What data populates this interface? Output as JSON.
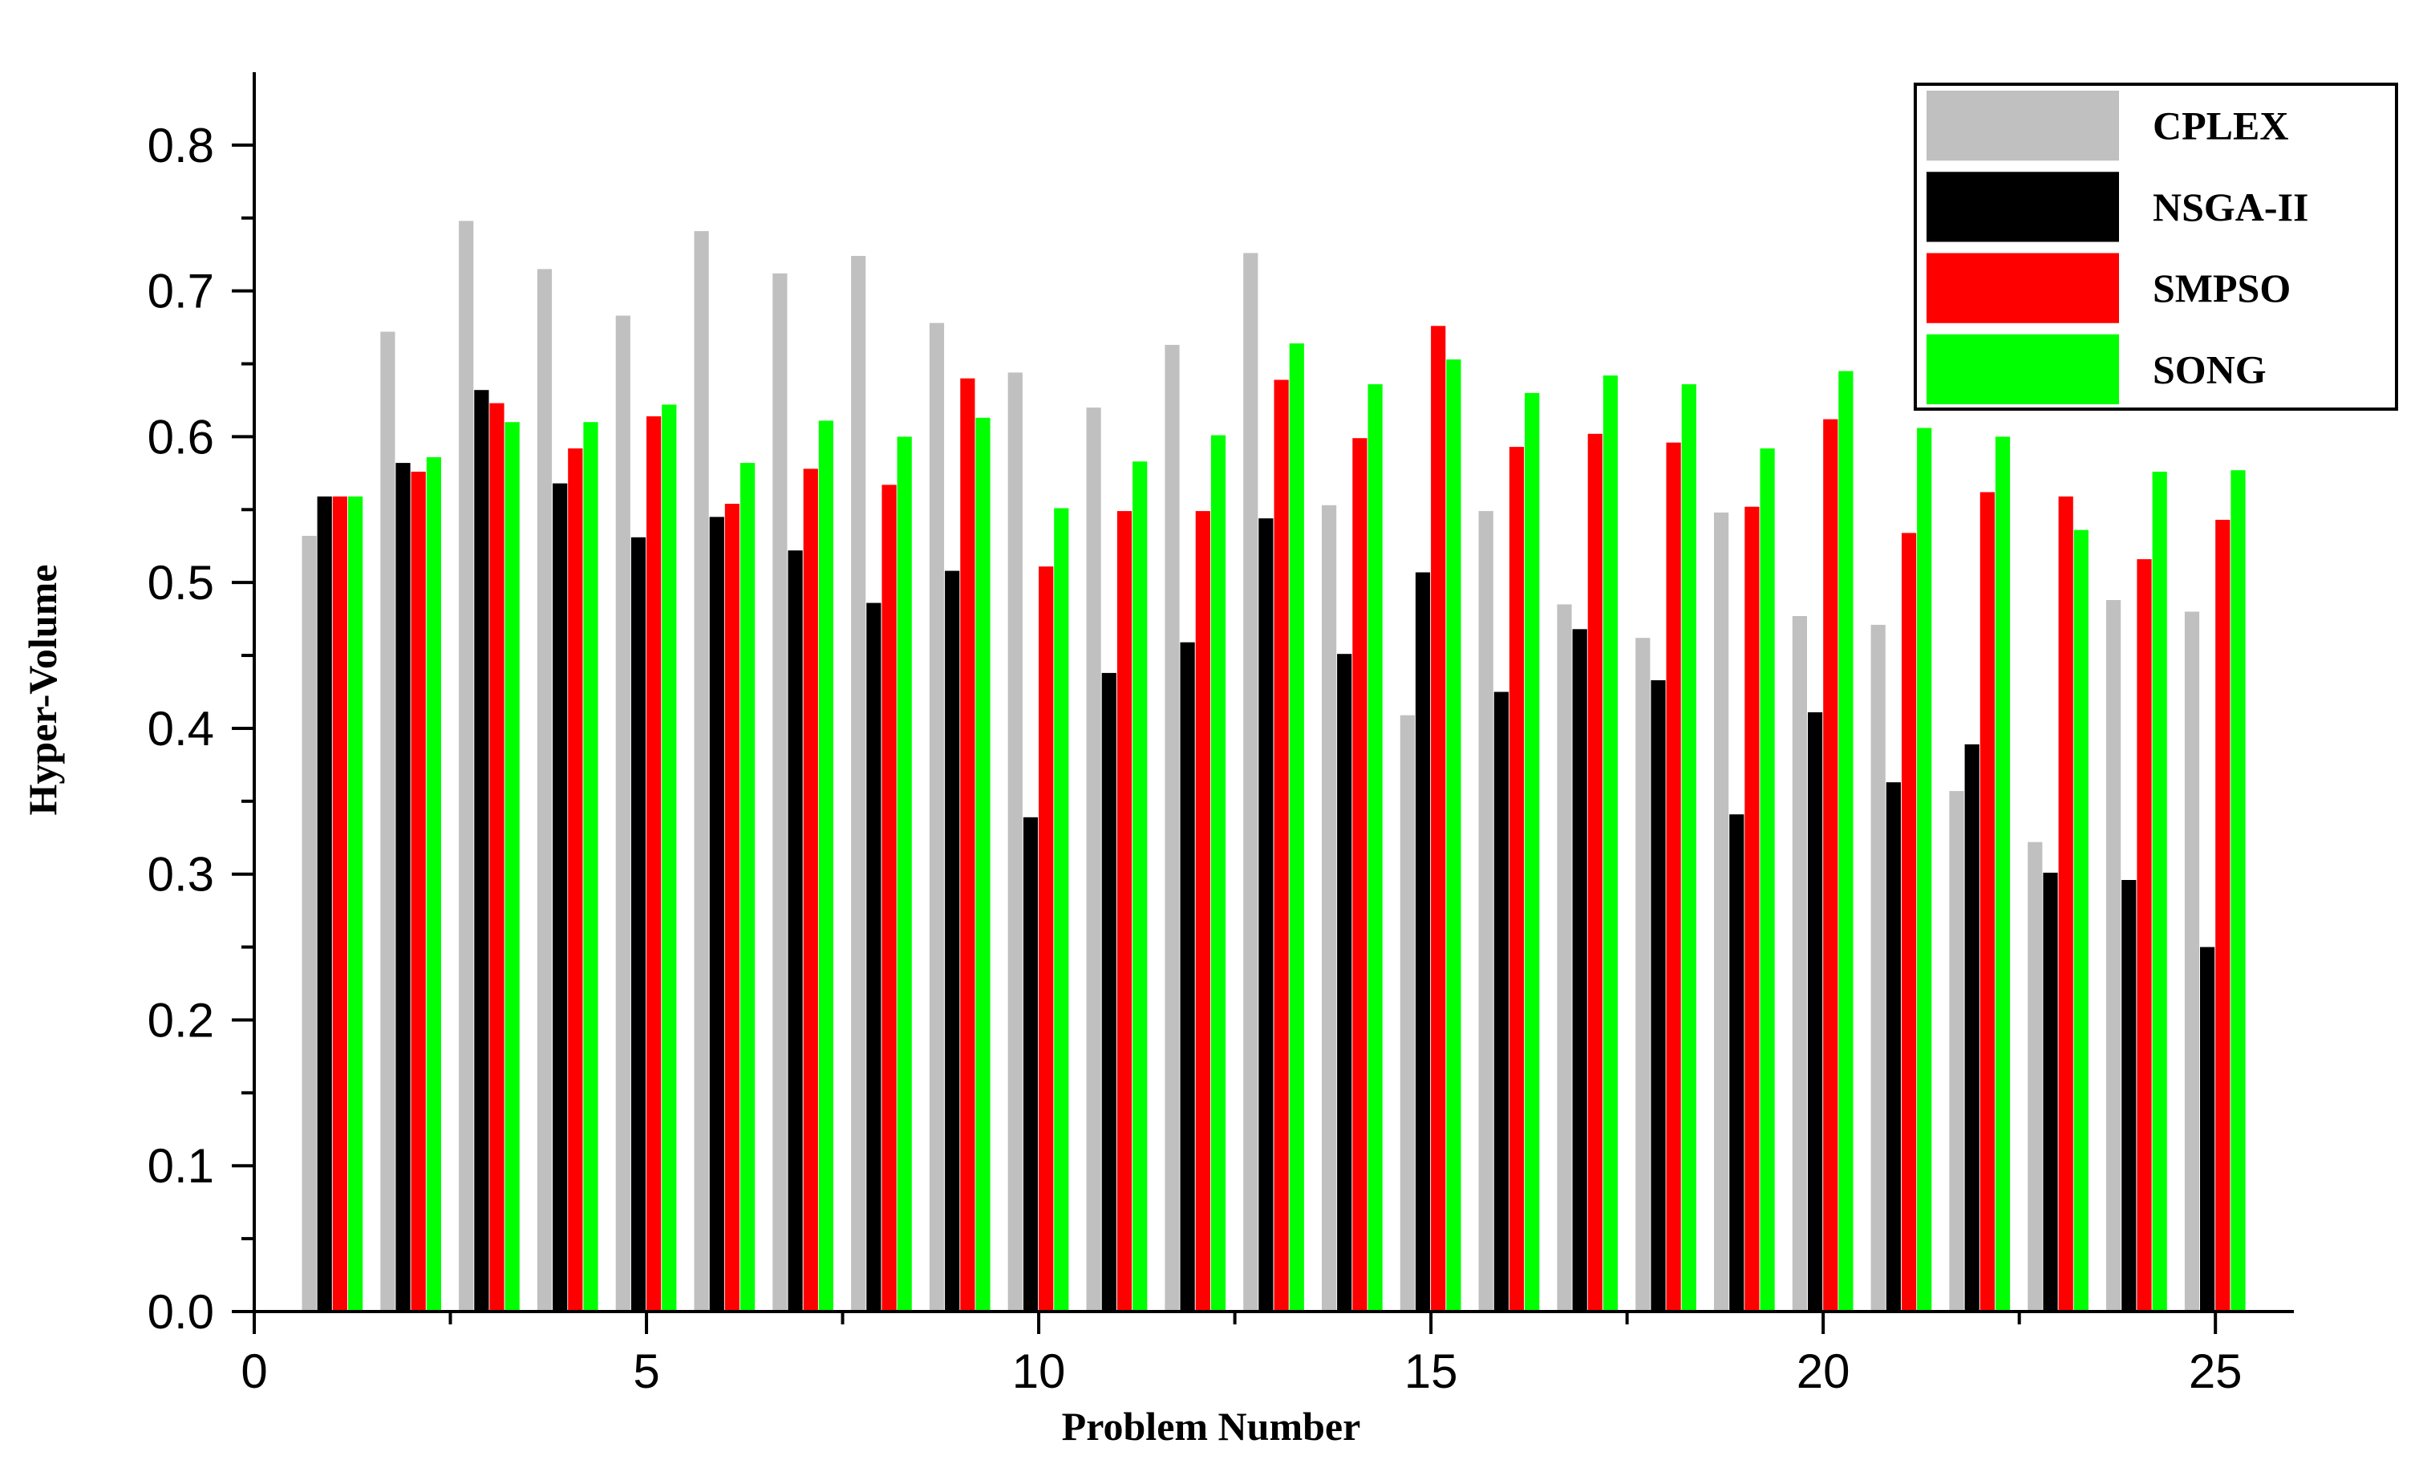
{
  "chart_data": {
    "type": "bar",
    "xlabel": "Problem Number",
    "ylabel": "Hyper-Volume",
    "xlim": [
      0,
      26
    ],
    "ylim": [
      0,
      0.85
    ],
    "x_ticks": [
      "0",
      "5",
      "10",
      "15",
      "20",
      "25"
    ],
    "y_ticks": [
      "0.0",
      "0.1",
      "0.2",
      "0.3",
      "0.4",
      "0.5",
      "0.6",
      "0.7",
      "0.8"
    ],
    "categories": [
      1,
      2,
      3,
      4,
      5,
      6,
      7,
      8,
      9,
      10,
      11,
      12,
      13,
      14,
      15,
      16,
      17,
      18,
      19,
      20,
      21,
      22,
      23,
      24,
      25
    ],
    "legend_position": "top-right",
    "grid": false,
    "series": [
      {
        "name": "CPLEX",
        "color": "#c0c0c0",
        "values": [
          0.532,
          0.672,
          0.748,
          0.715,
          0.683,
          0.741,
          0.712,
          0.724,
          0.678,
          0.644,
          0.62,
          0.663,
          0.726,
          0.553,
          0.409,
          0.549,
          0.485,
          0.462,
          0.548,
          0.477,
          0.471,
          0.357,
          0.322,
          0.488,
          0.48
        ]
      },
      {
        "name": "NSGA-II",
        "color": "#000000",
        "values": [
          0.559,
          0.582,
          0.632,
          0.568,
          0.531,
          0.545,
          0.522,
          0.486,
          0.508,
          0.339,
          0.438,
          0.459,
          0.544,
          0.451,
          0.507,
          0.425,
          0.468,
          0.433,
          0.341,
          0.411,
          0.363,
          0.389,
          0.301,
          0.296,
          0.25
        ]
      },
      {
        "name": "SMPSO",
        "color": "#ff0000",
        "values": [
          0.559,
          0.576,
          0.623,
          0.592,
          0.614,
          0.554,
          0.578,
          0.567,
          0.64,
          0.511,
          0.549,
          0.549,
          0.639,
          0.599,
          0.676,
          0.593,
          0.602,
          0.596,
          0.552,
          0.612,
          0.534,
          0.562,
          0.559,
          0.516,
          0.543
        ]
      },
      {
        "name": "SONG",
        "color": "#00ff00",
        "values": [
          0.559,
          0.586,
          0.61,
          0.61,
          0.622,
          0.582,
          0.611,
          0.6,
          0.613,
          0.551,
          0.583,
          0.601,
          0.664,
          0.636,
          0.653,
          0.63,
          0.642,
          0.636,
          0.592,
          0.645,
          0.606,
          0.6,
          0.536,
          0.576,
          0.577
        ]
      }
    ]
  }
}
